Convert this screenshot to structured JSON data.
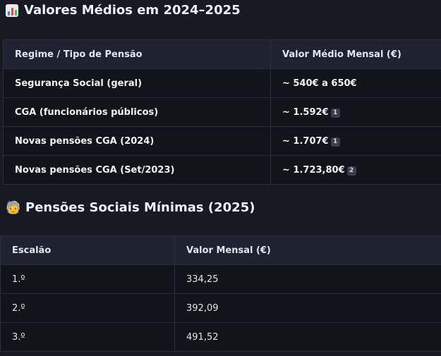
{
  "section1": {
    "icon": "bar-chart-emoji",
    "title": "Valores Médios em 2024–2025",
    "headers": [
      "Regime / Tipo de Pensão",
      "Valor Médio Mensal (€)"
    ],
    "rows": [
      {
        "regime": "Segurança Social (geral)",
        "value": "~ 540€ a 650€",
        "ref": ""
      },
      {
        "regime": "CGA (funcionários públicos)",
        "value": "~ 1.592€",
        "ref": "1"
      },
      {
        "regime": "Novas pensões CGA (2024)",
        "value": "~ 1.707€",
        "ref": "1"
      },
      {
        "regime": "Novas pensões CGA (Set/2023)",
        "value": "~ 1.723,80€",
        "ref": "2"
      }
    ]
  },
  "section2": {
    "icon": "older-person-emoji",
    "title": "Pensões Sociais Mínimas (2025)",
    "headers": [
      "Escalão",
      "Valor Mensal (€)"
    ],
    "rows": [
      {
        "escalao": "1.º",
        "value": "334,25"
      },
      {
        "escalao": "2.º",
        "value": "392,09"
      },
      {
        "escalao": "3.º",
        "value": "491,52"
      }
    ]
  },
  "colors": {
    "background": "#171923",
    "header_bg": "#1f2230",
    "row_bg": "#12141c",
    "border": "#2a2e3a"
  }
}
